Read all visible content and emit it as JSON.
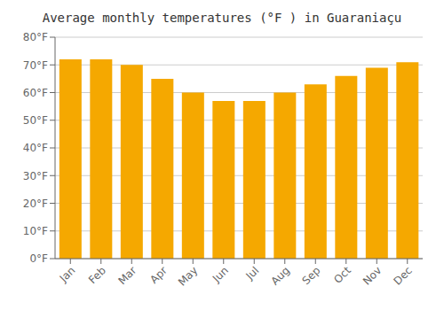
{
  "chart_data": {
    "type": "bar",
    "title": "Average monthly temperatures (°F ) in Guaraniaçu",
    "categories": [
      "Jan",
      "Feb",
      "Mar",
      "Apr",
      "May",
      "Jun",
      "Jul",
      "Aug",
      "Sep",
      "Oct",
      "Nov",
      "Dec"
    ],
    "values": [
      72,
      72,
      70,
      65,
      60,
      57,
      57,
      60,
      63,
      66,
      69,
      71
    ],
    "color": "#F5A800",
    "ylim": [
      0,
      80
    ],
    "yticks": [
      {
        "value": 0,
        "label": "0°F"
      },
      {
        "value": 10,
        "label": "10°F"
      },
      {
        "value": 20,
        "label": "20°F"
      },
      {
        "value": 30,
        "label": "30°F"
      },
      {
        "value": 40,
        "label": "40°F"
      },
      {
        "value": 50,
        "label": "50°F"
      },
      {
        "value": 60,
        "label": "60°F"
      },
      {
        "value": 70,
        "label": "70°F"
      },
      {
        "value": 80,
        "label": "80°F"
      }
    ],
    "grid": true
  }
}
